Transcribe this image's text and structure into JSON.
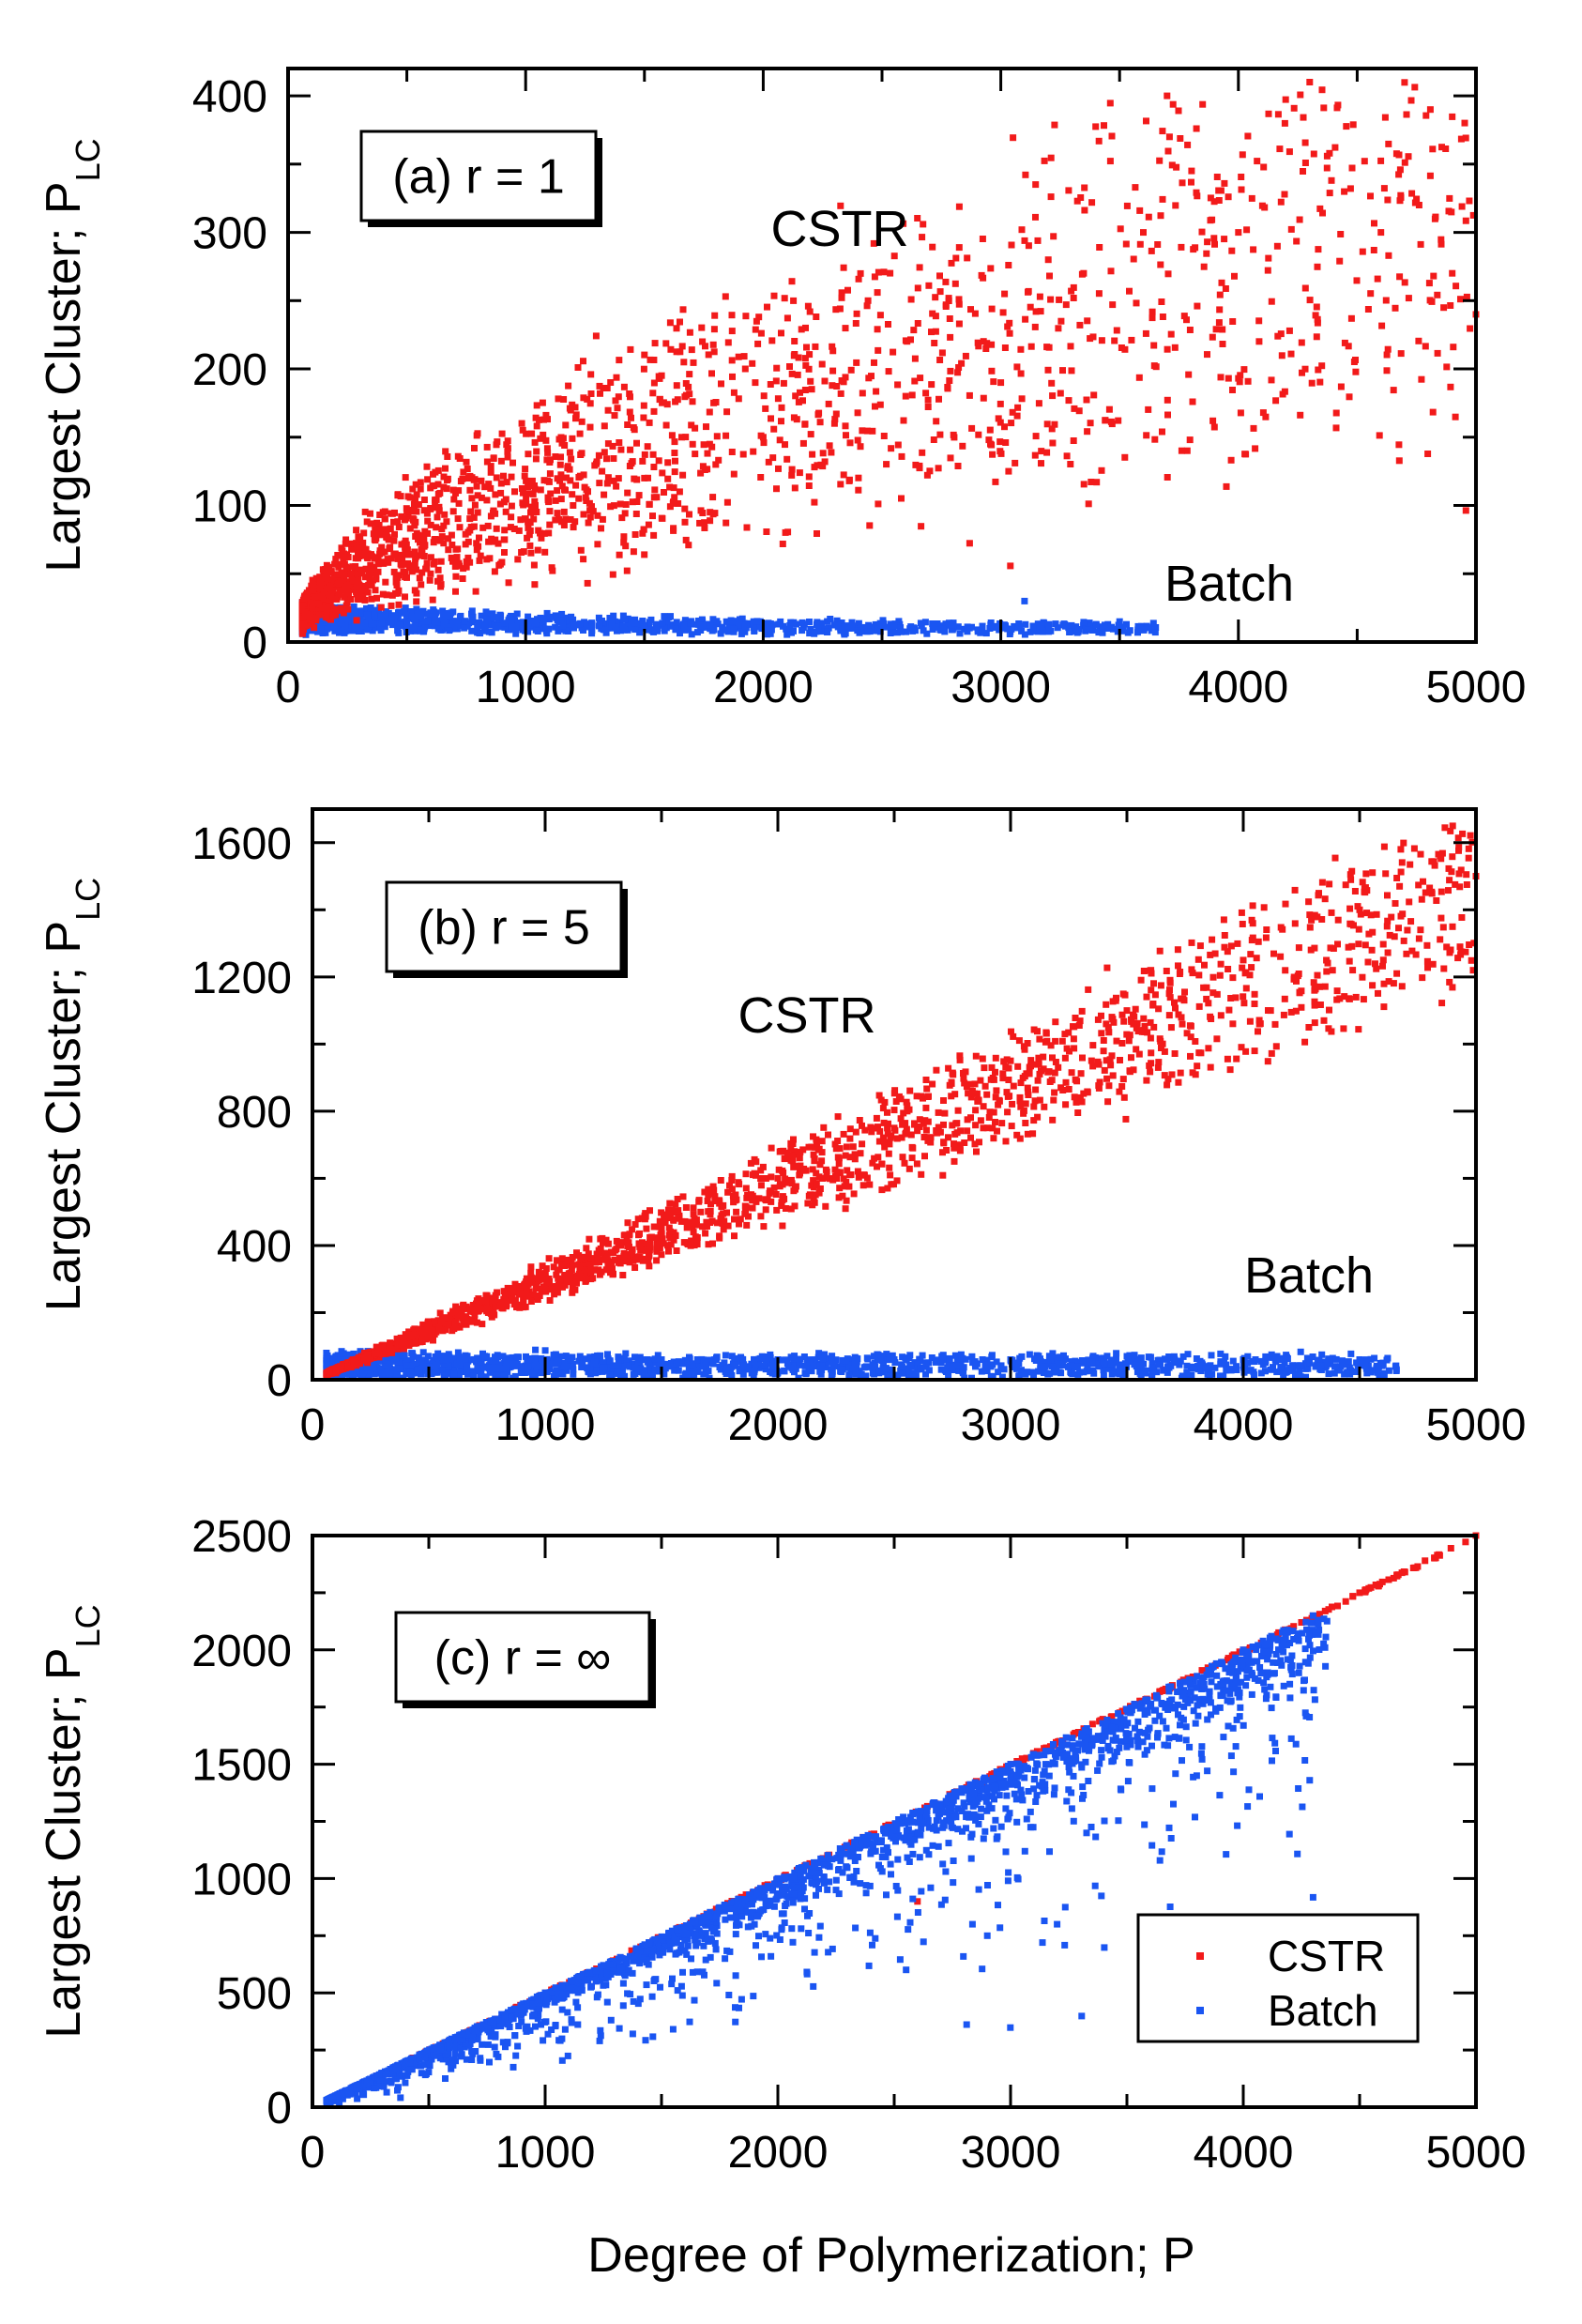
{
  "figure": {
    "xlabel": "Degree of Polymerization; P"
  },
  "colors": {
    "cstr": "#f21a1a",
    "batch": "#1a55f2"
  },
  "chart_data": [
    {
      "type": "scatter",
      "panel_label": "(a) r = 1",
      "ylabel_main": "Largest Cluster; P",
      "ylabel_sub": "LC",
      "xlim": [
        0,
        5000
      ],
      "ylim": [
        0,
        420
      ],
      "xticks": [
        0,
        1000,
        2000,
        3000,
        4000,
        5000
      ],
      "yticks": [
        0,
        100,
        200,
        300,
        400
      ],
      "annotations": [
        "CSTR",
        "Batch"
      ],
      "series": [
        {
          "key": "cstr",
          "points": [
            [
              200,
              20
            ],
            [
              400,
              35
            ],
            [
              600,
              50
            ],
            [
              800,
              70
            ],
            [
              1000,
              90
            ],
            [
              1200,
              100
            ],
            [
              1500,
              120
            ],
            [
              1800,
              130
            ],
            [
              2000,
              150
            ],
            [
              2300,
              160
            ],
            [
              2600,
              180
            ],
            [
              3000,
              190
            ],
            [
              3200,
              280
            ],
            [
              3600,
              300
            ],
            [
              3700,
              400
            ],
            [
              4000,
              300
            ],
            [
              4300,
              410
            ],
            [
              4600,
              300
            ],
            [
              4900,
              270
            ],
            [
              5000,
              240
            ]
          ]
        },
        {
          "key": "batch",
          "points": [
            [
              100,
              10
            ],
            [
              300,
              15
            ],
            [
              500,
              15
            ],
            [
              800,
              14
            ],
            [
              1000,
              12
            ],
            [
              1500,
              12
            ],
            [
              2000,
              13
            ],
            [
              2500,
              12
            ],
            [
              2800,
              14
            ],
            [
              3100,
              30
            ],
            [
              3500,
              15
            ]
          ]
        }
      ]
    },
    {
      "type": "scatter",
      "panel_label": "(b) r = 5",
      "ylabel_main": "Largest Cluster; P",
      "ylabel_sub": "LC",
      "xlim": [
        0,
        5000
      ],
      "ylim": [
        0,
        1700
      ],
      "xticks": [
        0,
        1000,
        2000,
        3000,
        4000,
        5000
      ],
      "yticks": [
        0,
        400,
        800,
        1200,
        1600
      ],
      "annotations": [
        "CSTR",
        "Batch"
      ],
      "series": [
        {
          "key": "cstr",
          "points": [
            [
              100,
              20
            ],
            [
              500,
              150
            ],
            [
              1000,
              300
            ],
            [
              1500,
              450
            ],
            [
              2000,
              600
            ],
            [
              2500,
              750
            ],
            [
              3000,
              950
            ],
            [
              3500,
              1100
            ],
            [
              4000,
              1250
            ],
            [
              4500,
              1400
            ],
            [
              4900,
              1650
            ],
            [
              5000,
              1500
            ]
          ]
        },
        {
          "key": "batch",
          "points": [
            [
              100,
              20
            ],
            [
              500,
              40
            ],
            [
              1000,
              60
            ],
            [
              1500,
              60
            ],
            [
              2000,
              60
            ],
            [
              2500,
              60
            ],
            [
              3000,
              60
            ],
            [
              3500,
              70
            ],
            [
              4000,
              60
            ],
            [
              4500,
              60
            ]
          ]
        }
      ]
    },
    {
      "type": "scatter",
      "panel_label": "(c)  r = ∞",
      "ylabel_main": "Largest Cluster; P",
      "ylabel_sub": "LC",
      "xlim": [
        0,
        5000
      ],
      "ylim": [
        0,
        2500
      ],
      "xticks": [
        0,
        1000,
        2000,
        3000,
        4000,
        5000
      ],
      "yticks": [
        0,
        500,
        1000,
        1500,
        2000,
        2500
      ],
      "legend": {
        "entries": [
          "CSTR",
          "Batch"
        ],
        "position": "bottom-right"
      },
      "series": [
        {
          "key": "cstr",
          "name": "CSTR",
          "points": [
            [
              1000,
              500
            ],
            [
              2000,
              1000
            ],
            [
              3000,
              1500
            ],
            [
              4000,
              2000
            ],
            [
              4500,
              2250
            ],
            [
              5000,
              2500
            ],
            [
              2600,
              900
            ],
            [
              2900,
              1400
            ]
          ]
        },
        {
          "key": "batch",
          "name": "Batch",
          "points": [
            [
              100,
              50
            ],
            [
              1000,
              500
            ],
            [
              2000,
              1000
            ],
            [
              3000,
              1500
            ],
            [
              4000,
              2000
            ],
            [
              4300,
              2150
            ],
            [
              3200,
              800
            ],
            [
              2900,
              750
            ],
            [
              3800,
              1450
            ],
            [
              4200,
              1850
            ]
          ]
        }
      ]
    }
  ]
}
